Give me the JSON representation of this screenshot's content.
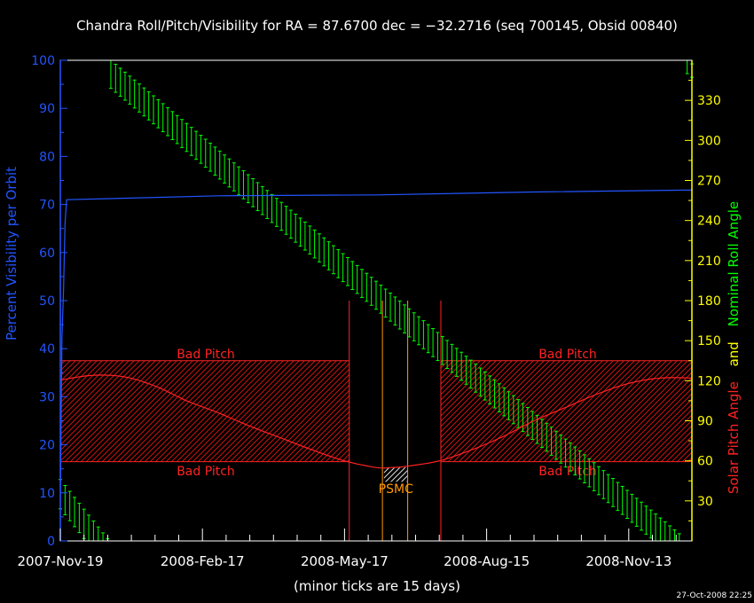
{
  "chart_data": {
    "type": "line",
    "title": "Chandra Roll/Pitch/Visibility for RA = 87.6700 dec = −32.2716 (seq 700145, Obsid 00840)",
    "xlabel": "(minor ticks are 15 days)",
    "timestamp": "27-Oct-2008 22:25",
    "x_tick_labels": [
      "2007-Nov-19",
      "2008-Feb-17",
      "2008-May-17",
      "2008-Aug-15",
      "2008-Nov-13"
    ],
    "x_tick_days": [
      0,
      90,
      180,
      270,
      360
    ],
    "x_range_days": [
      0,
      400
    ],
    "x_minor_tick_days": 15,
    "y_left": {
      "label": "Percent Visibility per Orbit",
      "ticks": [
        0,
        10,
        20,
        30,
        40,
        50,
        60,
        70,
        80,
        90,
        100
      ],
      "range": [
        0,
        100
      ],
      "color": "#2255ff"
    },
    "y_right": {
      "label_parts": [
        {
          "text": "Solar Pitch Angle",
          "color": "#ff2222"
        },
        {
          "text": "and",
          "color": "#ffff00"
        },
        {
          "text": "Nominal Roll Angle",
          "color": "#00ff00"
        }
      ],
      "ticks": [
        30,
        60,
        90,
        120,
        150,
        180,
        210,
        240,
        270,
        300,
        330
      ],
      "range": [
        0,
        360
      ],
      "color": "#ffff00"
    },
    "bad_pitch": {
      "label": "Bad Pitch",
      "upper_band": [
        137,
        360
      ],
      "lower_band": [
        0,
        59
      ],
      "color": "#ff2222"
    },
    "psmc": {
      "label": "PSMC",
      "range_days": [
        205,
        220
      ],
      "color": "#ff9900"
    },
    "vertical_markers": {
      "red_days": [
        183,
        241
      ],
      "orange_days": [
        204,
        220
      ]
    },
    "series": [
      {
        "name": "visibility",
        "color": "#2255ff",
        "points": [
          [
            0,
            8
          ],
          [
            1,
            42
          ],
          [
            2,
            52
          ],
          [
            3,
            66
          ],
          [
            4,
            71
          ],
          [
            100,
            71.8
          ],
          [
            200,
            72.0
          ],
          [
            300,
            72.6
          ],
          [
            400,
            73.0
          ]
        ]
      },
      {
        "name": "pitch",
        "color": "#ff2222",
        "points": [
          [
            0,
            120.5
          ],
          [
            20,
            124
          ],
          [
            40,
            123
          ],
          [
            60,
            116
          ],
          [
            80,
            105
          ],
          [
            100,
            96
          ],
          [
            120,
            86
          ],
          [
            140,
            77
          ],
          [
            160,
            68
          ],
          [
            180,
            60
          ],
          [
            200,
            55
          ],
          [
            210,
            55
          ],
          [
            220,
            56
          ],
          [
            240,
            60
          ],
          [
            260,
            68
          ],
          [
            280,
            78
          ],
          [
            300,
            90
          ],
          [
            320,
            100
          ],
          [
            340,
            110
          ],
          [
            360,
            118
          ],
          [
            380,
            122
          ],
          [
            400,
            122
          ]
        ]
      }
    ],
    "roll": {
      "color": "#00ff00",
      "start_day": 0,
      "end_day": 400,
      "step_days": 3,
      "segments": [
        {
          "day_start": 0,
          "day_end": 31,
          "roll_start_top": 46,
          "roll_slope": -1.48,
          "band_width": 22
        },
        {
          "day_start": 32,
          "day_end": 394,
          "roll_start_top": 360,
          "roll_slope": -0.985,
          "band_width": 21
        },
        {
          "day_start": 397,
          "day_end": 400,
          "roll_start_top": 360,
          "roll_slope": -0.9,
          "band_width": 10
        }
      ]
    }
  }
}
